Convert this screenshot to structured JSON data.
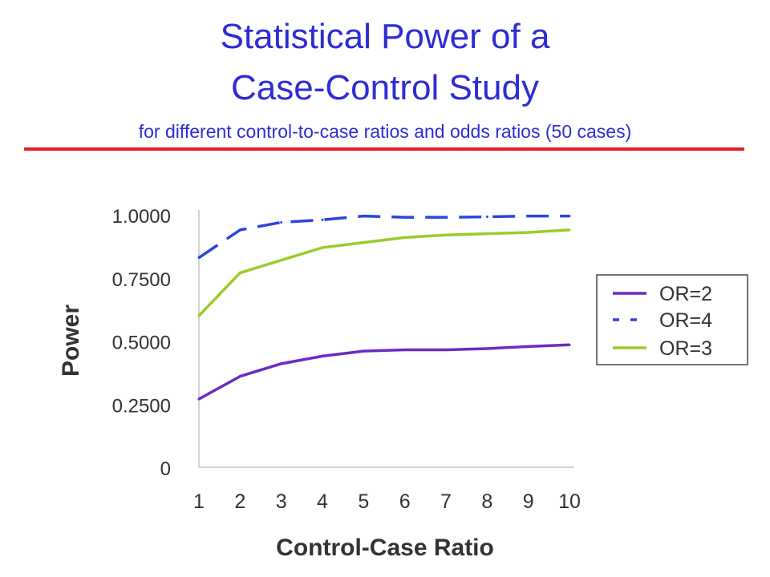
{
  "slide": {
    "title_line1": "Statistical Power of a",
    "title_line2": "Case-Control Study",
    "subtitle": "for different control-to-case ratios and odds ratios (50 cases)",
    "accent_color": "#e21f1f",
    "title_color": "#2d2dd6"
  },
  "chart_data": {
    "type": "line",
    "title": "",
    "xlabel": "Control-Case Ratio",
    "ylabel": "Power",
    "x": [
      1,
      2,
      3,
      4,
      5,
      6,
      7,
      8,
      9,
      10
    ],
    "xticks": [
      "1",
      "2",
      "3",
      "4",
      "5",
      "6",
      "7",
      "8",
      "9",
      "10"
    ],
    "yticks": [
      "0",
      "0.2500",
      "0.5000",
      "0.7500",
      "1.0000"
    ],
    "ytick_values": [
      0,
      0.25,
      0.5,
      0.75,
      1.0
    ],
    "ylim": [
      0,
      1.0
    ],
    "grid": false,
    "legend_position": "right",
    "series": [
      {
        "name": "OR=2",
        "color": "#6a2cc6",
        "style": "solid",
        "values": [
          0.27,
          0.36,
          0.41,
          0.44,
          0.46,
          0.465,
          0.465,
          0.47,
          0.478,
          0.485
        ]
      },
      {
        "name": "OR=4",
        "color": "#2b45dd",
        "style": "dashed",
        "values": [
          0.83,
          0.94,
          0.97,
          0.98,
          0.995,
          0.99,
          0.99,
          0.992,
          0.995,
          0.995
        ]
      },
      {
        "name": "OR=3",
        "color": "#9acc2a",
        "style": "solid",
        "values": [
          0.6,
          0.77,
          0.82,
          0.87,
          0.89,
          0.91,
          0.92,
          0.925,
          0.93,
          0.94
        ]
      }
    ]
  }
}
